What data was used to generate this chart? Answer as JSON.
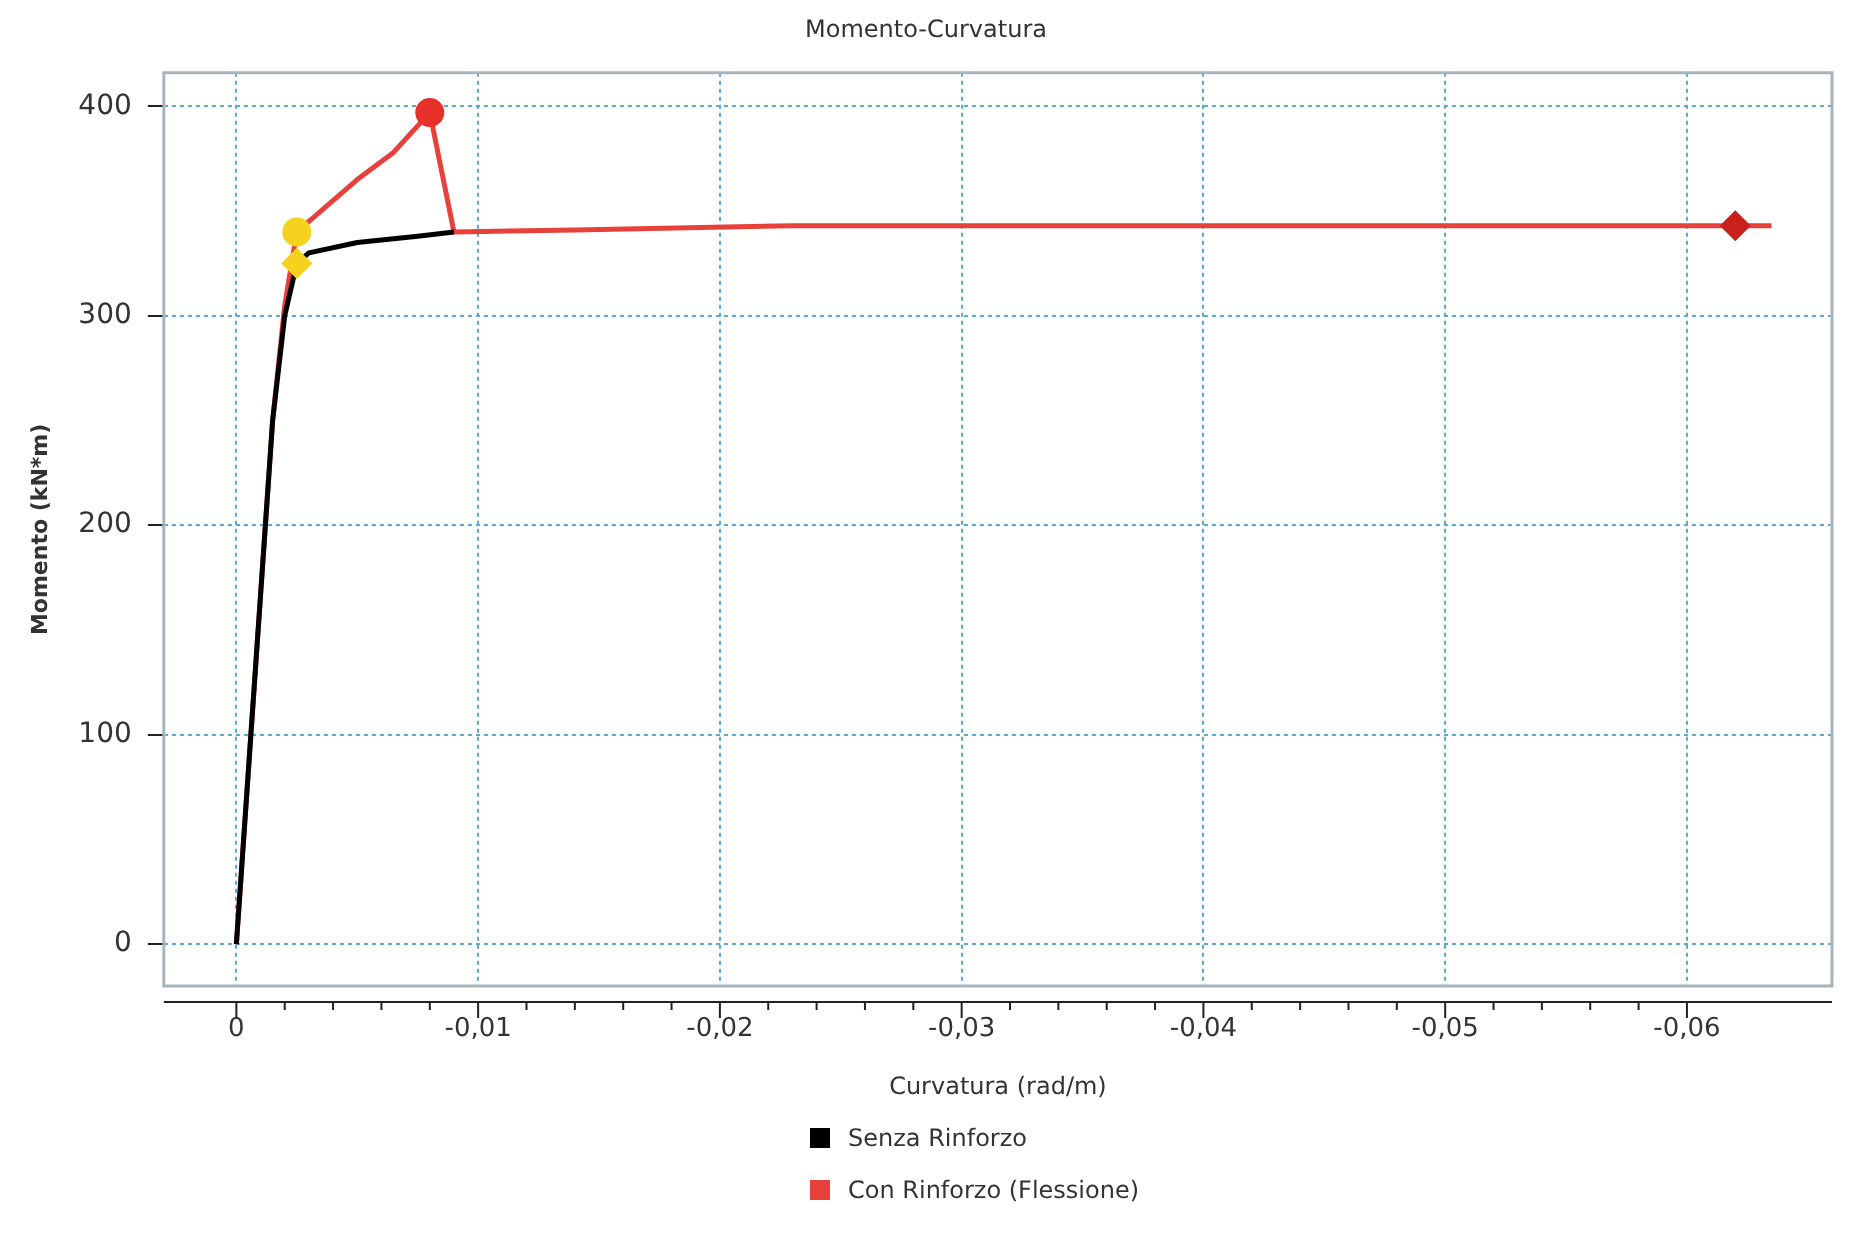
{
  "chart_data": {
    "type": "line",
    "title": "Momento-Curvatura",
    "xlabel": "Curvatura (rad/m)",
    "ylabel": "Momento (kN*m)",
    "xlim": [
      0.003,
      -0.066
    ],
    "xticks": [
      {
        "value": 0,
        "label": "0"
      },
      {
        "value": -0.01,
        "label": "-0,01"
      },
      {
        "value": -0.02,
        "label": "-0,02"
      },
      {
        "value": -0.03,
        "label": "-0,03"
      },
      {
        "value": -0.04,
        "label": "-0,04"
      },
      {
        "value": -0.05,
        "label": "-0,05"
      },
      {
        "value": -0.06,
        "label": "-0,06"
      }
    ],
    "ylim": [
      -20,
      416
    ],
    "yticks": [
      0,
      100,
      200,
      300,
      400
    ],
    "grid": true,
    "legend": "bottom",
    "line_style": "solid",
    "series": [
      {
        "name": "Senza Rinforzo",
        "color": "#000000",
        "marker": "none",
        "x": [
          0,
          -0.0015,
          -0.002,
          -0.0025,
          -0.003,
          -0.005,
          -0.0075,
          -0.009
        ],
        "values": [
          0,
          250,
          300,
          325,
          330,
          335,
          338,
          340
        ]
      },
      {
        "name": "Con Rinforzo (Flessione)",
        "color": "#e8403a",
        "marker": "none",
        "x": [
          0,
          -0.0015,
          -0.002,
          -0.0025,
          -0.005,
          -0.0065,
          -0.008,
          -0.009,
          -0.014,
          -0.023,
          -0.062,
          -0.0635
        ],
        "values": [
          0,
          250,
          305,
          340,
          365,
          378,
          397,
          340,
          341,
          343,
          343,
          343
        ]
      },
      {
        "type": "scatter",
        "color": "#f5d21e",
        "marker": "circle",
        "x": [
          -0.0025
        ],
        "values": [
          340
        ]
      },
      {
        "type": "scatter",
        "color": "#f5d21e",
        "marker": "diamond",
        "x": [
          -0.0025
        ],
        "values": [
          325
        ]
      },
      {
        "type": "scatter",
        "color": "#e8302a",
        "marker": "circle",
        "x": [
          -0.008
        ],
        "values": [
          397
        ]
      },
      {
        "type": "scatter",
        "color": "#c8201a",
        "marker": "diamond",
        "x": [
          -0.062
        ],
        "values": [
          343
        ]
      }
    ]
  }
}
